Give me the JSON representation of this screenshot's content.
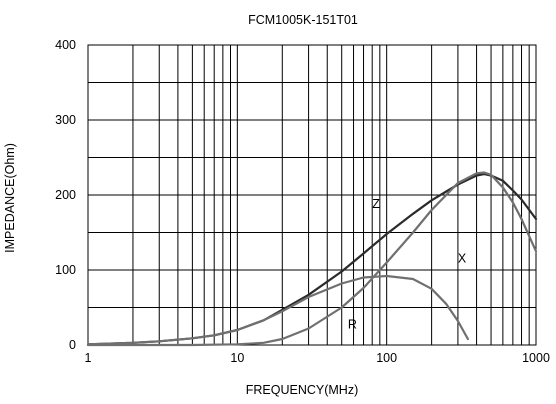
{
  "chart_data": {
    "type": "line",
    "title": "FCM1005K-151T01",
    "xlabel": "FREQUENCY(MHz)",
    "ylabel": "IMPEDANCE(Ohm)",
    "x_scale": "log",
    "xlim": [
      1,
      1000
    ],
    "ylim": [
      0,
      400
    ],
    "x_ticks": [
      "1",
      "10",
      "100",
      "1000"
    ],
    "y_ticks": [
      "0",
      "100",
      "200",
      "300",
      "400"
    ],
    "grid": true,
    "legend": "none",
    "series": [
      {
        "name": "Z",
        "color": "#2b2b2b",
        "x": [
          1,
          2,
          3,
          5,
          7,
          10,
          15,
          20,
          30,
          50,
          70,
          100,
          150,
          200,
          300,
          400,
          450,
          500,
          600,
          700,
          800,
          1000
        ],
        "y": [
          1,
          3,
          5,
          9,
          13,
          20,
          33,
          47,
          67,
          98,
          122,
          148,
          175,
          193,
          214,
          226,
          228,
          226,
          219,
          206,
          194,
          168
        ]
      },
      {
        "name": "X",
        "color": "#707070",
        "x": [
          1,
          2,
          3,
          5,
          7,
          10,
          15,
          20,
          30,
          50,
          70,
          100,
          150,
          200,
          250,
          300,
          350
        ],
        "y": [
          1,
          3,
          5,
          9,
          13,
          20,
          33,
          45,
          64,
          82,
          90,
          92,
          88,
          75,
          55,
          32,
          8
        ]
      },
      {
        "name": "R",
        "color": "#707070",
        "x": [
          1,
          5,
          10,
          15,
          20,
          30,
          50,
          70,
          100,
          150,
          200,
          300,
          400,
          450,
          500,
          600,
          700,
          800,
          1000
        ],
        "y": [
          0,
          0,
          1,
          3,
          8,
          22,
          50,
          76,
          110,
          150,
          180,
          216,
          229,
          230,
          227,
          210,
          190,
          168,
          125
        ]
      }
    ]
  }
}
